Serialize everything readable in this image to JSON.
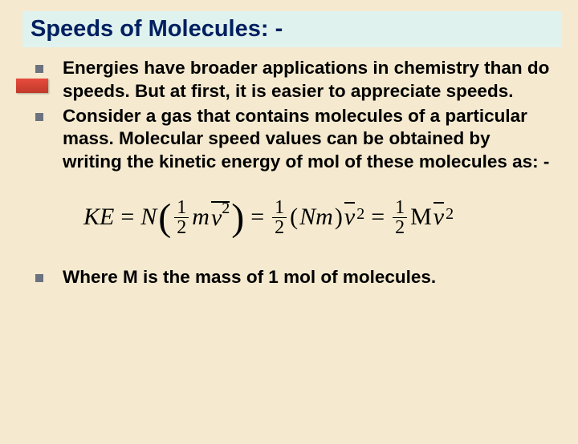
{
  "title": "Speeds of Molecules: -",
  "bullets": {
    "item1": "Energies have broader applications in chemistry than do speeds. But at first, it is easier to appreciate speeds.",
    "item2": "Consider a gas that contains molecules of a particular mass. Molecular speed values can be obtained by writing the kinetic energy of mol of these molecules as: -",
    "item3": "Where M is the mass of 1 mol of molecules."
  },
  "formula": {
    "KE": "KE",
    "N": "N",
    "m": "m",
    "v": "v",
    "Nm": "Nm",
    "M": "M",
    "frac_num": "1",
    "frac_den": "2",
    "exp": "2"
  },
  "colors": {
    "slide_bg": "#f5eacf",
    "title_bg": "#e0f2ee",
    "title_text": "#002060",
    "body_text": "#000000",
    "bullet_marker": "#6b7280",
    "accent": "#e84c3d"
  },
  "typography": {
    "title_fontsize": 29,
    "body_fontsize": 22.5,
    "formula_fontsize": 30,
    "font_family_body": "Verdana",
    "font_family_formula": "Times New Roman"
  }
}
